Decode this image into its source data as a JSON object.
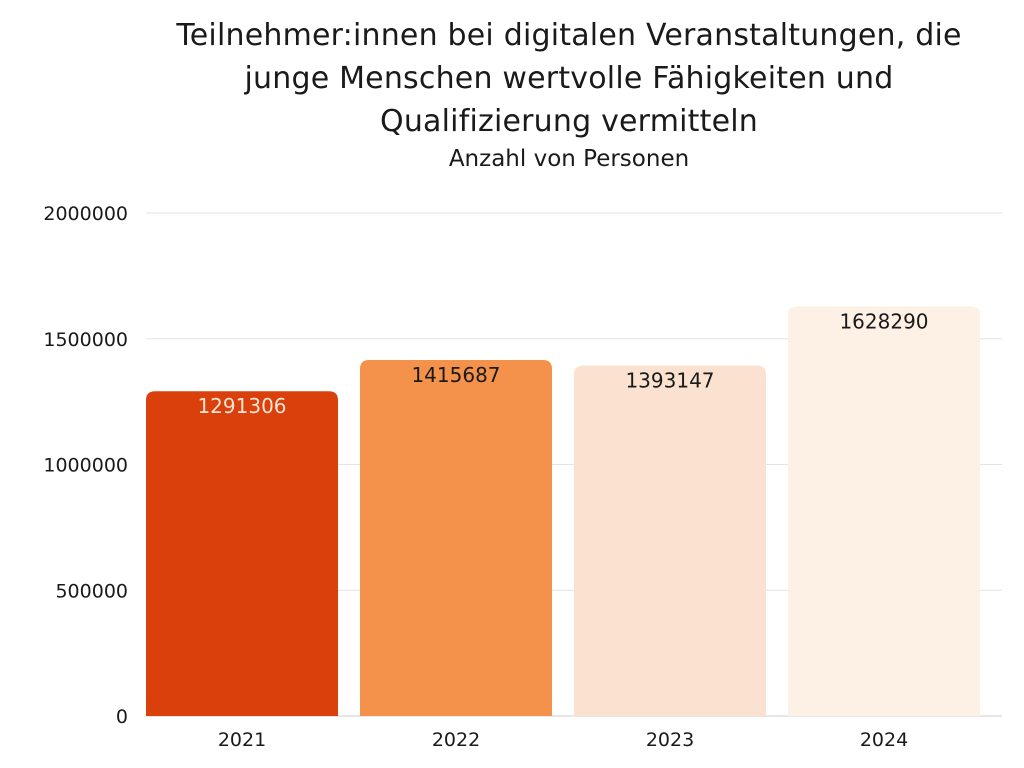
{
  "chart_data": {
    "type": "bar",
    "title": "Teilnehmer:innen bei digitalen Veranstaltungen, die junge Menschen wertvolle Fähigkeiten und Qualifizierung vermitteln",
    "subtitle": "Anzahl von Personen",
    "xlabel": "",
    "ylabel": "",
    "categories": [
      "2021",
      "2022",
      "2023",
      "2024"
    ],
    "values": [
      1291306,
      1415687,
      1393147,
      1628290
    ],
    "value_labels": [
      "1291306",
      "1415687",
      "1393147",
      "1628290"
    ],
    "bar_colors": [
      "#d9400b",
      "#f4914a",
      "#fbe1d0",
      "#fdf0e5"
    ],
    "value_label_colors": [
      "#fce3d3",
      "#1a1a1a",
      "#1a1a1a",
      "#1a1a1a"
    ],
    "ylim": [
      0,
      2000000
    ],
    "yticks": [
      0,
      500000,
      1000000,
      1500000,
      2000000
    ],
    "ytick_labels": [
      "0",
      "500000",
      "1000000",
      "1500000",
      "2000000"
    ],
    "grid": true,
    "gridline_color": "#e3e3e3",
    "legend": "none"
  }
}
